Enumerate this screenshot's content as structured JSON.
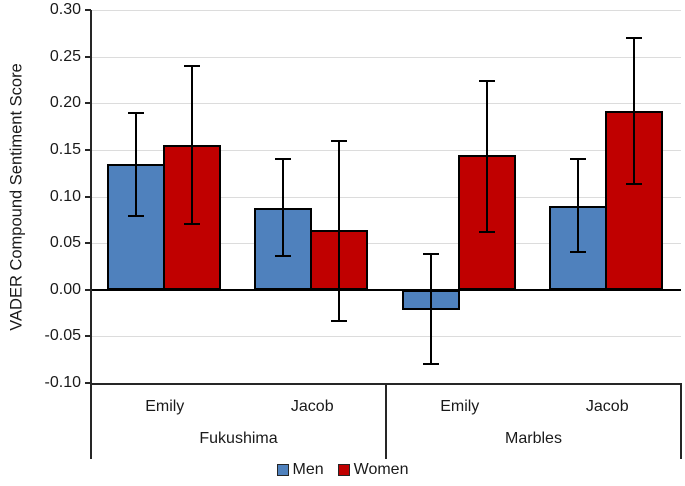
{
  "chart_data": {
    "type": "bar",
    "title": "",
    "ylabel": "VADER Compound Sentiment Score",
    "xlabel": "",
    "ylim": [
      -0.1,
      0.3
    ],
    "ytick_step": 0.05,
    "yticklabels": [
      "0.30",
      "0.25",
      "0.20",
      "0.15",
      "0.10",
      "0.05",
      "0.00",
      "-0.05",
      "-0.10"
    ],
    "grid": true,
    "legend_position": "bottom",
    "groups": [
      {
        "label": "Fukushima",
        "categories": [
          "Emily",
          "Jacob"
        ]
      },
      {
        "label": "Marbles",
        "categories": [
          "Emily",
          "Jacob"
        ]
      }
    ],
    "series": [
      {
        "name": "Men",
        "color": "#4F81BD",
        "values": [
          0.135,
          0.088,
          -0.022,
          0.09
        ],
        "error_low": [
          0.079,
          0.036,
          -0.08,
          0.04
        ],
        "error_high": [
          0.19,
          0.14,
          0.038,
          0.14
        ]
      },
      {
        "name": "Women",
        "color": "#C00000",
        "values": [
          0.155,
          0.064,
          0.144,
          0.192
        ],
        "error_low": [
          0.07,
          -0.033,
          0.062,
          0.113
        ],
        "error_high": [
          0.24,
          0.16,
          0.224,
          0.27
        ]
      }
    ],
    "colors": {
      "bar_border": "#000000",
      "error_bar": "#000000",
      "gridline": "#dcdcdc",
      "axis": "#262626",
      "zero_line": "#000000"
    }
  }
}
